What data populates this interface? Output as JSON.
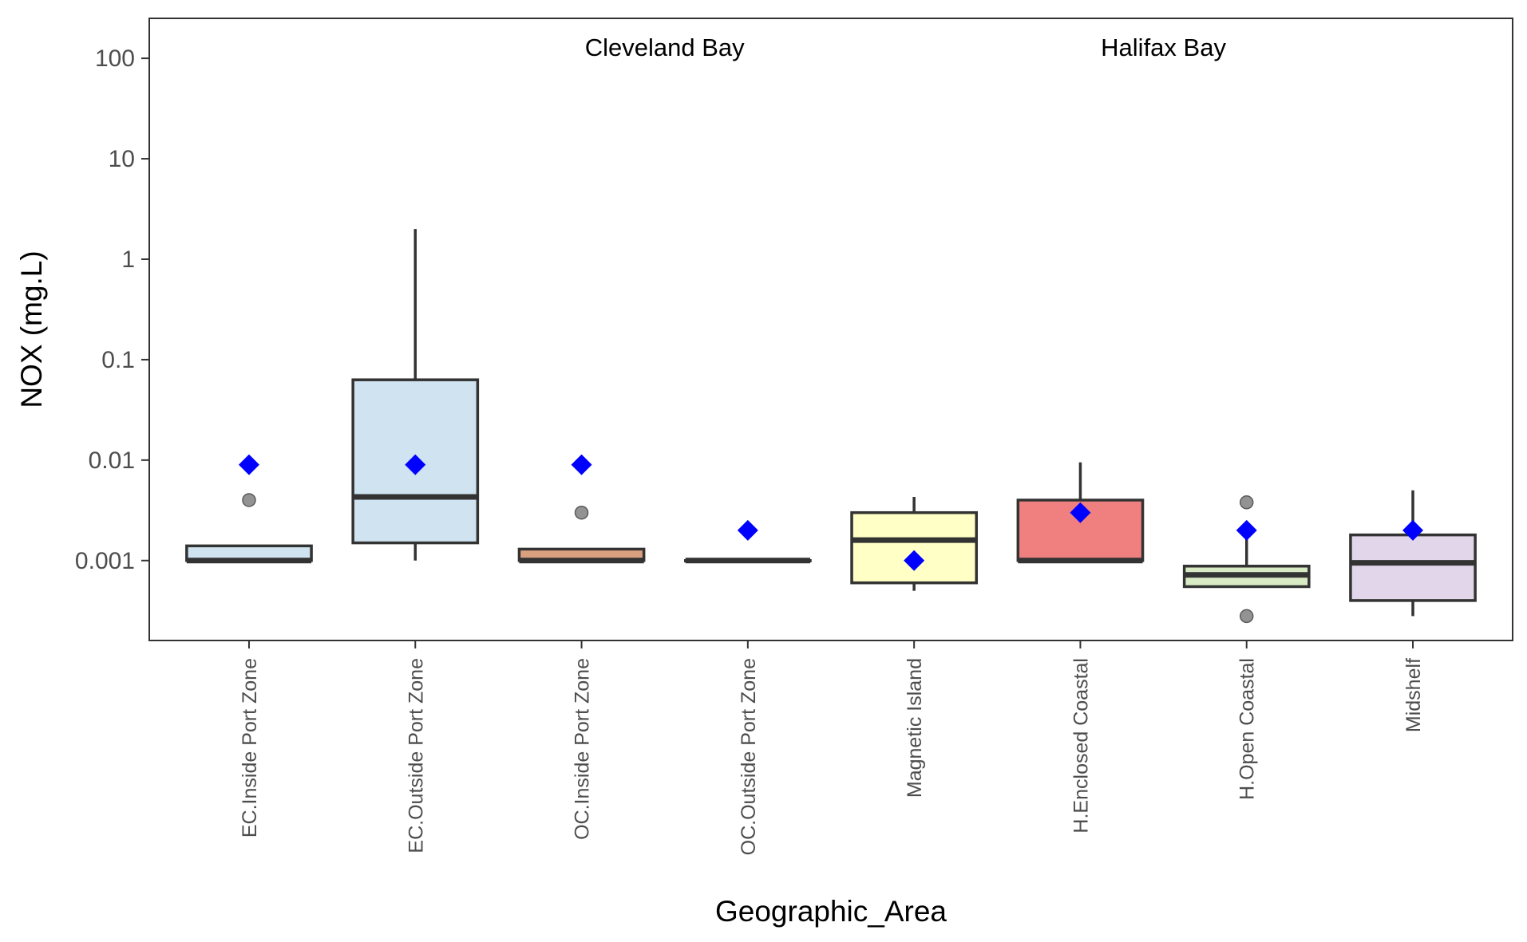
{
  "chart_data": {
    "type": "boxplot",
    "xlabel": "Geographic_Area",
    "ylabel": "NOX (mg.L)",
    "yscale": "log10",
    "ylim": [
      0.00016,
      250
    ],
    "yticks": [
      0.001,
      0.01,
      0.1,
      1,
      10,
      100
    ],
    "ytick_labels": [
      "0.001",
      "0.01",
      "0.1",
      "1",
      "10",
      "100"
    ],
    "grid": false,
    "annotations": [
      {
        "text": "Cleveland Bay",
        "x": 3.5,
        "y": 130
      },
      {
        "text": "Halifax Bay",
        "x": 6.5,
        "y": 130
      }
    ],
    "categories": [
      "EC.Inside Port Zone",
      "EC.Outside Port Zone",
      "OC.Inside Port Zone",
      "OC.Outside Port Zone",
      "Magnetic Island",
      "H.Enclosed Coastal",
      "H.Open Coastal",
      "Midshelf"
    ],
    "boxes": [
      {
        "category": "EC.Inside Port Zone",
        "whisker_low": 0.001,
        "q1": 0.001,
        "median": 0.001,
        "q3": 0.0014,
        "whisker_high": 0.0014,
        "mean": 0.009,
        "outliers": [
          0.004
        ],
        "fill": "#cfe3f0"
      },
      {
        "category": "EC.Outside Port Zone",
        "whisker_low": 0.001,
        "q1": 0.0015,
        "median": 0.0043,
        "q3": 0.063,
        "whisker_high": 2.0,
        "mean": 0.009,
        "outliers": [],
        "fill": "#cfe3f0"
      },
      {
        "category": "OC.Inside Port Zone",
        "whisker_low": 0.001,
        "q1": 0.001,
        "median": 0.001,
        "q3": 0.0013,
        "whisker_high": 0.0013,
        "mean": 0.009,
        "outliers": [
          0.003
        ],
        "fill": "#d9a080"
      },
      {
        "category": "OC.Outside Port Zone",
        "whisker_low": 0.001,
        "q1": 0.001,
        "median": 0.001,
        "q3": 0.001,
        "whisker_high": 0.001,
        "mean": 0.002,
        "outliers": [],
        "fill": "#8fd0a0"
      },
      {
        "category": "Magnetic Island",
        "whisker_low": 0.0005,
        "q1": 0.0006,
        "median": 0.0016,
        "q3": 0.003,
        "whisker_high": 0.0043,
        "mean": 0.001,
        "outliers": [],
        "fill": "#ffffc6"
      },
      {
        "category": "H.Enclosed Coastal",
        "whisker_low": 0.001,
        "q1": 0.001,
        "median": 0.001,
        "q3": 0.004,
        "whisker_high": 0.0095,
        "mean": 0.003,
        "outliers": [],
        "fill": "#f08080"
      },
      {
        "category": "H.Open Coastal",
        "whisker_low": 0.00055,
        "q1": 0.00055,
        "median": 0.00072,
        "q3": 0.00088,
        "whisker_high": 0.002,
        "mean": 0.002,
        "outliers": [
          0.0038,
          0.00028
        ],
        "fill": "#d9ebc4"
      },
      {
        "category": "Midshelf",
        "whisker_low": 0.00028,
        "q1": 0.0004,
        "median": 0.00095,
        "q3": 0.0018,
        "whisker_high": 0.005,
        "mean": 0.002,
        "outliers": [],
        "fill": "#e2d6ea"
      }
    ],
    "colors": {
      "mean_marker": "#0000ff",
      "outlier": "#808080",
      "box_stroke": "#333333",
      "panel_border": "#333333"
    }
  }
}
